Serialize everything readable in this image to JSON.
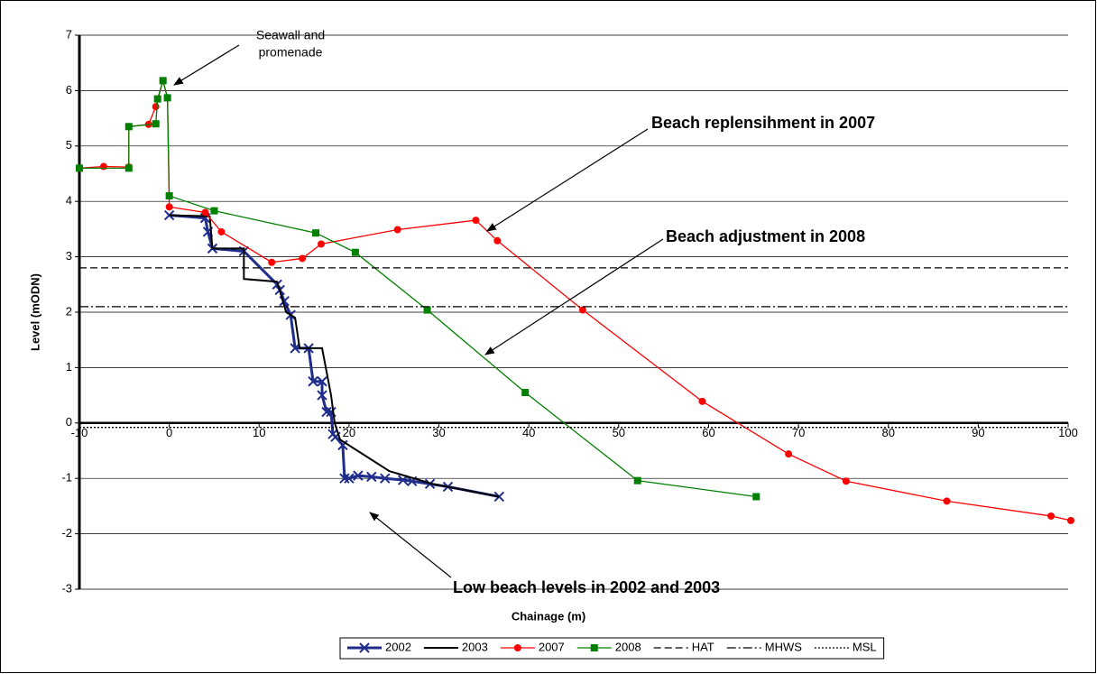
{
  "chart_data": {
    "type": "line",
    "xlabel": "Chainage (m)",
    "ylabel": "Level (mODN)",
    "xlim": [
      -10,
      100
    ],
    "xticks": [
      -10,
      0,
      10,
      20,
      30,
      40,
      50,
      60,
      70,
      80,
      90,
      100
    ],
    "ylim": [
      -3,
      7
    ],
    "yticks": [
      -3,
      -2,
      -1,
      0,
      1,
      2,
      3,
      4,
      5,
      6,
      7
    ],
    "grid": true,
    "legend": "bottom",
    "annotations": [
      {
        "text": [
          "Seawall and",
          "promenade"
        ]
      },
      {
        "text": [
          "Beach replensihment in 2007"
        ]
      },
      {
        "text": [
          "Beach adjustment in 2008"
        ]
      },
      {
        "text": [
          "Low beach levels in 2002 and 2003"
        ]
      }
    ],
    "series": [
      {
        "name": "2002",
        "color": "#1f2d8c",
        "marker": "x",
        "dash": "none",
        "width": 3,
        "x": [
          0,
          4,
          4.3,
          4.8,
          8.3,
          12,
          12.3,
          12.8,
          13.5,
          14,
          15.5,
          16,
          17,
          17,
          17.5,
          18,
          18.2,
          18.5,
          19.3,
          19.5,
          20,
          21,
          22.5,
          24,
          26,
          27,
          29,
          31,
          36.7
        ],
        "values": [
          3.75,
          3.7,
          3.45,
          3.15,
          3.1,
          2.5,
          2.4,
          2.2,
          1.95,
          1.35,
          1.35,
          0.75,
          0.75,
          0.5,
          0.2,
          0.2,
          -0.2,
          -0.25,
          -0.4,
          -1.0,
          -1.0,
          -0.95,
          -0.97,
          -1.0,
          -1.03,
          -1.05,
          -1.1,
          -1.15,
          -1.33
        ]
      },
      {
        "name": "2003",
        "color": "#000000",
        "marker": "none",
        "dash": "none",
        "width": 2,
        "x": [
          0,
          4.5,
          4.8,
          8.3,
          8.3,
          12,
          13,
          14,
          14.5,
          17,
          18,
          18.4,
          19,
          24.5,
          29.3,
          36.7
        ],
        "values": [
          3.75,
          3.73,
          3.15,
          3.15,
          2.6,
          2.55,
          2.0,
          1.9,
          1.35,
          1.35,
          0.5,
          0,
          -0.3,
          -0.87,
          -1.1,
          -1.33
        ]
      },
      {
        "name": "2007",
        "color": "#ff0000",
        "marker": "circle",
        "dash": "none",
        "width": 1.3,
        "x": [
          -10,
          -7.3,
          -4.5,
          -4.5,
          -2.3,
          -1.5,
          -0.7,
          -0.2,
          0,
          4,
          5.8,
          11.4,
          14.8,
          16.9,
          25.4,
          34.1,
          36.5,
          46,
          59.3,
          68.9,
          75.3,
          86.5,
          98.1,
          100.3
        ],
        "values": [
          4.6,
          4.63,
          4.62,
          5.35,
          5.39,
          5.71,
          6.18,
          5.87,
          3.9,
          3.8,
          3.45,
          2.9,
          2.97,
          3.23,
          3.49,
          3.66,
          3.29,
          2.04,
          0.39,
          -0.56,
          -1.05,
          -1.41,
          -1.68,
          -1.76
        ]
      },
      {
        "name": "2008",
        "color": "#008000",
        "marker": "square",
        "dash": "none",
        "width": 1.3,
        "x": [
          -10,
          -4.5,
          -4.5,
          -1.5,
          -1.3,
          -0.7,
          -0.2,
          0,
          5,
          16.3,
          20.7,
          28.7,
          39.6,
          52.1,
          65.3
        ],
        "values": [
          4.6,
          4.6,
          5.35,
          5.4,
          5.85,
          6.18,
          5.87,
          4.1,
          3.83,
          3.43,
          3.08,
          2.04,
          0.55,
          -1.04,
          -1.33
        ]
      },
      {
        "name": "HAT",
        "color": "#000000",
        "marker": "none",
        "dash": "8,4",
        "width": 1.3,
        "x": [
          -10,
          100
        ],
        "values": [
          2.8,
          2.8
        ]
      },
      {
        "name": "MHWS",
        "color": "#000000",
        "marker": "none",
        "dash": "10,3,2,3",
        "width": 1.3,
        "x": [
          -10,
          100
        ],
        "values": [
          2.1,
          2.1
        ]
      },
      {
        "name": "MSL",
        "color": "#000000",
        "marker": "none",
        "dash": "2,2",
        "width": 1.3,
        "x": [
          -10,
          100
        ],
        "values": [
          -0.08,
          -0.08
        ]
      }
    ]
  }
}
